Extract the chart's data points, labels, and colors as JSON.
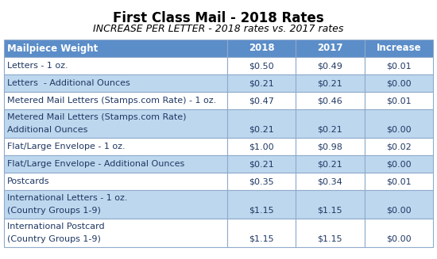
{
  "title": "First Class Mail - 2018 Rates",
  "subtitle": "INCREASE PER LETTER - 2018 rates vs. 2017 rates",
  "headers": [
    "Mailpiece Weight",
    "2018",
    "2017",
    "Increase"
  ],
  "rows": [
    {
      "label": "Letters - 1 oz.",
      "label2": "",
      "rate2018": "$0.50",
      "rate2017": "$0.49",
      "increase": "$0.01",
      "tall": false,
      "bg": "light"
    },
    {
      "label": "Letters  - Additional Ounces",
      "label2": "",
      "rate2018": "$0.21",
      "rate2017": "$0.21",
      "increase": "$0.00",
      "tall": false,
      "bg": "dark"
    },
    {
      "label": "Metered Mail Letters (Stamps.com Rate) - 1 oz.",
      "label2": "",
      "rate2018": "$0.47",
      "rate2017": "$0.46",
      "increase": "$0.01",
      "tall": false,
      "bg": "light"
    },
    {
      "label": "Metered Mail Letters (Stamps.com Rate)",
      "label2": "Additional Ounces",
      "rate2018": "$0.21",
      "rate2017": "$0.21",
      "increase": "$0.00",
      "tall": true,
      "bg": "dark"
    },
    {
      "label": "Flat/Large Envelope - 1 oz.",
      "label2": "",
      "rate2018": "$1.00",
      "rate2017": "$0.98",
      "increase": "$0.02",
      "tall": false,
      "bg": "light"
    },
    {
      "label": "Flat/Large Envelope - Additional Ounces",
      "label2": "",
      "rate2018": "$0.21",
      "rate2017": "$0.21",
      "increase": "$0.00",
      "tall": false,
      "bg": "dark"
    },
    {
      "label": "Postcards",
      "label2": "",
      "rate2018": "$0.35",
      "rate2017": "$0.34",
      "increase": "$0.01",
      "tall": false,
      "bg": "light"
    },
    {
      "label": "International Letters - 1 oz.",
      "label2": "(Country Groups 1-9)",
      "rate2018": "$1.15",
      "rate2017": "$1.15",
      "increase": "$0.00",
      "tall": true,
      "bg": "dark"
    },
    {
      "label": "International Postcard",
      "label2": "(Country Groups 1-9)",
      "rate2018": "$1.15",
      "rate2017": "$1.15",
      "increase": "$0.00",
      "tall": true,
      "bg": "light"
    }
  ],
  "header_bg": "#5B8DC8",
  "header_text": "#FFFFFF",
  "row_light_bg": "#FFFFFF",
  "row_dark_bg": "#BDD7EE",
  "border_color": "#8FAACC",
  "text_color": "#1F3864",
  "title_fontsize": 12,
  "subtitle_fontsize": 9,
  "cell_fontsize": 8,
  "header_fontsize": 8.5
}
